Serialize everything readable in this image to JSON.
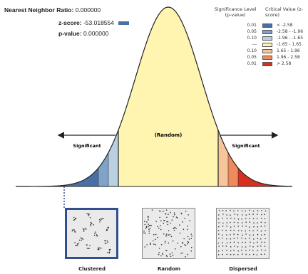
{
  "stats": {
    "ratio_label": "Nearest Neighbor Ratio:",
    "ratio_value": "0.000000",
    "z_label": "z-score:",
    "z_value": "-53.018554",
    "p_label": "p-value:",
    "p_value": "0.000000",
    "z_marker_color": "#4a6fa5"
  },
  "legend": {
    "sig_header": "Significance Level (p-value)",
    "crit_header": "Critical Value (z-score)",
    "rows": [
      {
        "p": "0.01",
        "crit": "< -2.58",
        "color": "#4a6fa5"
      },
      {
        "p": "0.05",
        "crit": "-2.58 - -1.96",
        "color": "#7fa3c8"
      },
      {
        "p": "0.10",
        "crit": "-1.96 - -1.65",
        "color": "#b9d0e0"
      },
      {
        "p": "---",
        "crit": "-1.65 - 1.65",
        "color": "#fff3b0"
      },
      {
        "p": "0.10",
        "crit": "1.65 - 1.96",
        "color": "#f7c59a"
      },
      {
        "p": "0.05",
        "crit": "1.96 - 2.58",
        "color": "#ee8a5c"
      },
      {
        "p": "0.01",
        "crit": "> 2.58",
        "color": "#d7301f"
      }
    ]
  },
  "curve": {
    "center_label": "(Random)",
    "left_label": "Significant",
    "right_label": "Significant",
    "colors": {
      "center": "#fff5b0",
      "left": [
        "#4a6fa5",
        "#7fa3c8",
        "#b9d0e0"
      ],
      "right": [
        "#f7c59a",
        "#ee8a5c",
        "#d7301f"
      ]
    }
  },
  "panels": {
    "clustered": "Clustered",
    "random": "Random",
    "dispersed": "Dispersed"
  }
}
